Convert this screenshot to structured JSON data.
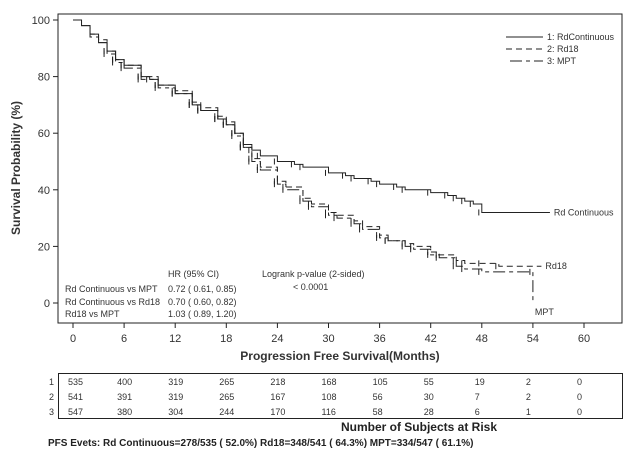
{
  "chart_data": {
    "type": "line",
    "subtype": "kaplan-meier",
    "title": "",
    "xlabel": "Progression Free Survival(Months)",
    "ylabel": "Survival Probability (%)",
    "xlim": [
      0,
      60
    ],
    "ylim": [
      0,
      100
    ],
    "xticks": [
      0,
      6,
      12,
      18,
      24,
      30,
      36,
      42,
      48,
      54,
      60
    ],
    "yticks": [
      0,
      20,
      40,
      60,
      80,
      100
    ],
    "grid": false,
    "legend_position": "top-right",
    "legend": [
      "1: RdContinuous",
      "2: Rd18",
      "3: MPT"
    ],
    "series": [
      {
        "name": "RdContinuous",
        "style": "solid",
        "end_label": "Rd Continuous",
        "points": [
          [
            0,
            100
          ],
          [
            1,
            98
          ],
          [
            2,
            95
          ],
          [
            3,
            92
          ],
          [
            4,
            89
          ],
          [
            5,
            86
          ],
          [
            6,
            84
          ],
          [
            8,
            80
          ],
          [
            9,
            79
          ],
          [
            10,
            77
          ],
          [
            12,
            74
          ],
          [
            14,
            70
          ],
          [
            15,
            68
          ],
          [
            17,
            65
          ],
          [
            18,
            63
          ],
          [
            19,
            60
          ],
          [
            20,
            56
          ],
          [
            21,
            54
          ],
          [
            22,
            52
          ],
          [
            24,
            50
          ],
          [
            26,
            49
          ],
          [
            27,
            48
          ],
          [
            30,
            46
          ],
          [
            32,
            45
          ],
          [
            33,
            44
          ],
          [
            35,
            43
          ],
          [
            36,
            42
          ],
          [
            38,
            41
          ],
          [
            39,
            40
          ],
          [
            42,
            39
          ],
          [
            44,
            38
          ],
          [
            45,
            37
          ],
          [
            46,
            36
          ],
          [
            47,
            35
          ],
          [
            48,
            32
          ],
          [
            56,
            32
          ]
        ]
      },
      {
        "name": "Rd18",
        "style": "dashed",
        "end_label": "Rd18",
        "points": [
          [
            0,
            100
          ],
          [
            1,
            98
          ],
          [
            2,
            95
          ],
          [
            3,
            93
          ],
          [
            4,
            89
          ],
          [
            5,
            86
          ],
          [
            6,
            84
          ],
          [
            8,
            80
          ],
          [
            10,
            77
          ],
          [
            12,
            75
          ],
          [
            14,
            71
          ],
          [
            15,
            69
          ],
          [
            17,
            66
          ],
          [
            18,
            64
          ],
          [
            19,
            60
          ],
          [
            20,
            55
          ],
          [
            21,
            51
          ],
          [
            22,
            48
          ],
          [
            24,
            43
          ],
          [
            25,
            41
          ],
          [
            27,
            37
          ],
          [
            28,
            35
          ],
          [
            30,
            32
          ],
          [
            31,
            31
          ],
          [
            33,
            29
          ],
          [
            34,
            27
          ],
          [
            36,
            23
          ],
          [
            37,
            22
          ],
          [
            39,
            21
          ],
          [
            40,
            20
          ],
          [
            42,
            18
          ],
          [
            43,
            17
          ],
          [
            45,
            15
          ],
          [
            46,
            14
          ],
          [
            48,
            14
          ],
          [
            50,
            13
          ],
          [
            55,
            13
          ]
        ]
      },
      {
        "name": "MPT",
        "style": "dash-dot",
        "end_label": "MPT",
        "points": [
          [
            0,
            100
          ],
          [
            1,
            98
          ],
          [
            2,
            94
          ],
          [
            3,
            92
          ],
          [
            4,
            88
          ],
          [
            5,
            85
          ],
          [
            6,
            83
          ],
          [
            8,
            79
          ],
          [
            10,
            76
          ],
          [
            12,
            74
          ],
          [
            14,
            70
          ],
          [
            15,
            68
          ],
          [
            17,
            65
          ],
          [
            18,
            63
          ],
          [
            19,
            59
          ],
          [
            20,
            55
          ],
          [
            21,
            50
          ],
          [
            22,
            47
          ],
          [
            24,
            42
          ],
          [
            25,
            40
          ],
          [
            27,
            36
          ],
          [
            28,
            34
          ],
          [
            30,
            31
          ],
          [
            31,
            30
          ],
          [
            33,
            28
          ],
          [
            34,
            26
          ],
          [
            36,
            24
          ],
          [
            37,
            22
          ],
          [
            39,
            20
          ],
          [
            40,
            19
          ],
          [
            42,
            17
          ],
          [
            43,
            16
          ],
          [
            45,
            13
          ],
          [
            46,
            12
          ],
          [
            48,
            11
          ],
          [
            54,
            11
          ],
          [
            54,
            0
          ]
        ]
      }
    ],
    "hr_table": {
      "header_hr": "HR (95% CI)",
      "header_p": "Logrank p-value (2-sided)",
      "p_value": "< 0.0001",
      "rows": [
        {
          "comparison": "Rd Continuous vs MPT",
          "hr": "0.72 ( 0.61, 0.85)"
        },
        {
          "comparison": "Rd Continuous vs Rd18",
          "hr": "0.70 ( 0.60, 0.82)"
        },
        {
          "comparison": "Rd18 vs MPT",
          "hr": "1.03 ( 0.89, 1.20)"
        }
      ]
    },
    "risk_table": {
      "title": "Number of Subjects at Risk",
      "timepoints": [
        0,
        6,
        12,
        18,
        24,
        30,
        36,
        42,
        48,
        54,
        60
      ],
      "rows": [
        {
          "label": "1",
          "values": [
            "535",
            "400",
            "319",
            "265",
            "218",
            "168",
            "105",
            "55",
            "19",
            "2",
            "0"
          ]
        },
        {
          "label": "2",
          "values": [
            "541",
            "391",
            "319",
            "265",
            "167",
            "108",
            "56",
            "30",
            "7",
            "2",
            "0"
          ]
        },
        {
          "label": "3",
          "values": [
            "547",
            "380",
            "304",
            "244",
            "170",
            "116",
            "58",
            "28",
            "6",
            "1",
            "0"
          ]
        }
      ]
    },
    "footer": "PFS Evets: Rd Continuous=278/535 ( 52.0%) Rd18=348/541 ( 64.3%) MPT=334/547 ( 61.1%)"
  }
}
